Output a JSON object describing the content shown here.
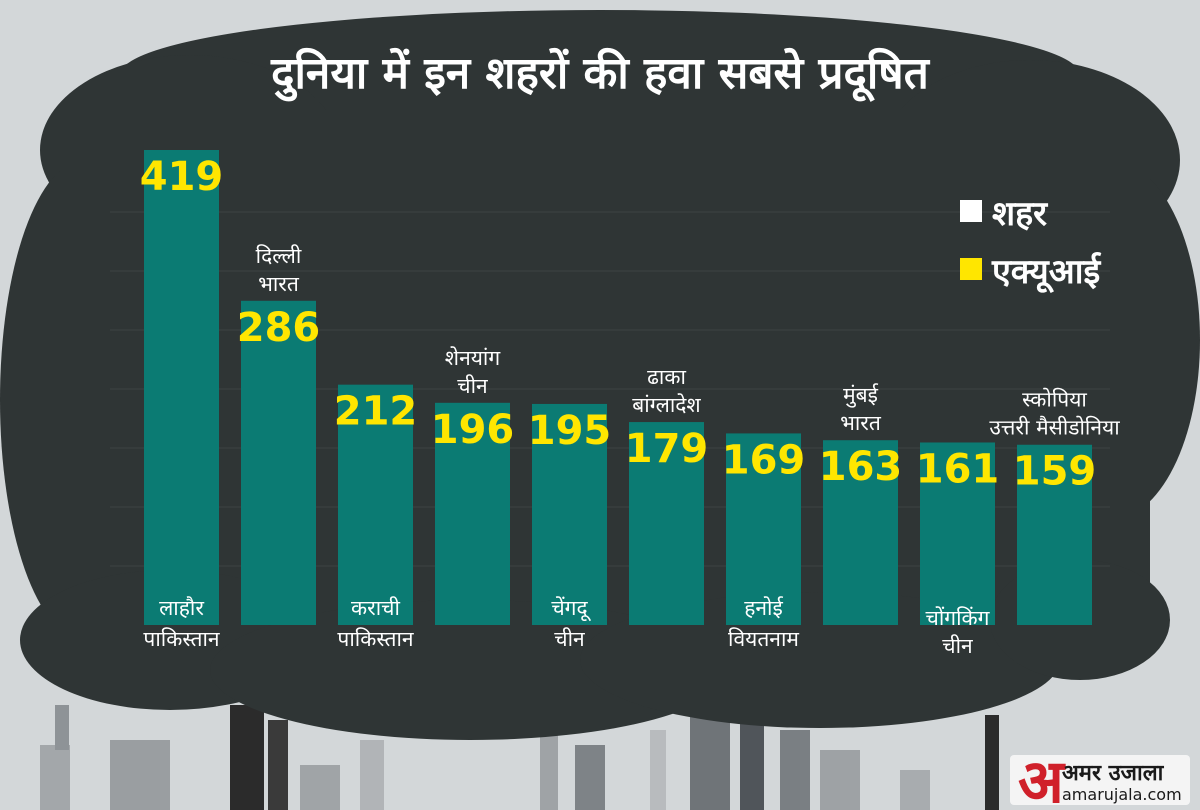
{
  "title": "दुनिया में इन शहरों की हवा सबसे प्रदूषित",
  "legend": {
    "position": "top-right",
    "items": [
      {
        "label": "शहर",
        "color": "#ffffff"
      },
      {
        "label": "एक्यूआई",
        "color": "#ffe600"
      }
    ]
  },
  "brand": {
    "logo_letter": "अ",
    "name": "अमर उजाला",
    "url": "amarujala.com"
  },
  "colors": {
    "bar": "#0b7b73",
    "cloud": "#2f3535",
    "value": "#ffe600",
    "label": "#ffffff"
  },
  "chart_data": {
    "type": "bar",
    "title": "दुनिया में इन शहरों की हवा सबसे प्रदूषित",
    "grid": true,
    "categories": [
      "लाहौर पाकिस्तान",
      "दिल्ली भारत",
      "कराची पाकिस्तान",
      "शेनयांग चीन",
      "चेंगदू चीन",
      "ढाका बांग्लादेश",
      "हनोई वियतनाम",
      "मुंबई भारत",
      "चोंगकिंग चीन",
      "स्कोपिया उत्तरी मैसीडोनिया"
    ],
    "values": [
      419,
      286,
      212,
      196,
      195,
      179,
      169,
      163,
      161,
      159
    ],
    "bars": [
      {
        "value": 419,
        "city": "लाहौर",
        "country": "पाकिस्तान",
        "label_pos": "inside"
      },
      {
        "value": 286,
        "city": "दिल्ली",
        "country": "भारत",
        "label_pos": "above"
      },
      {
        "value": 212,
        "city": "कराची",
        "country": "पाकिस्तान",
        "label_pos": "inside"
      },
      {
        "value": 196,
        "city": "शेनयांग",
        "country": "चीन",
        "label_pos": "above"
      },
      {
        "value": 195,
        "city": "चेंगदू",
        "country": "चीन",
        "label_pos": "inside"
      },
      {
        "value": 179,
        "city": "ढाका",
        "country": "बांग्लादेश",
        "label_pos": "above"
      },
      {
        "value": 169,
        "city": "हनोई",
        "country": "वियतनाम",
        "label_pos": "inside"
      },
      {
        "value": 163,
        "city": "मुंबई",
        "country": "भारत",
        "label_pos": "above"
      },
      {
        "value": 161,
        "city": "चोंगकिंग",
        "country": "चीन",
        "label_pos": "below"
      },
      {
        "value": 159,
        "city": "स्कोपिया",
        "country": "उत्तरी मैसीडोनिया",
        "label_pos": "above"
      }
    ]
  }
}
